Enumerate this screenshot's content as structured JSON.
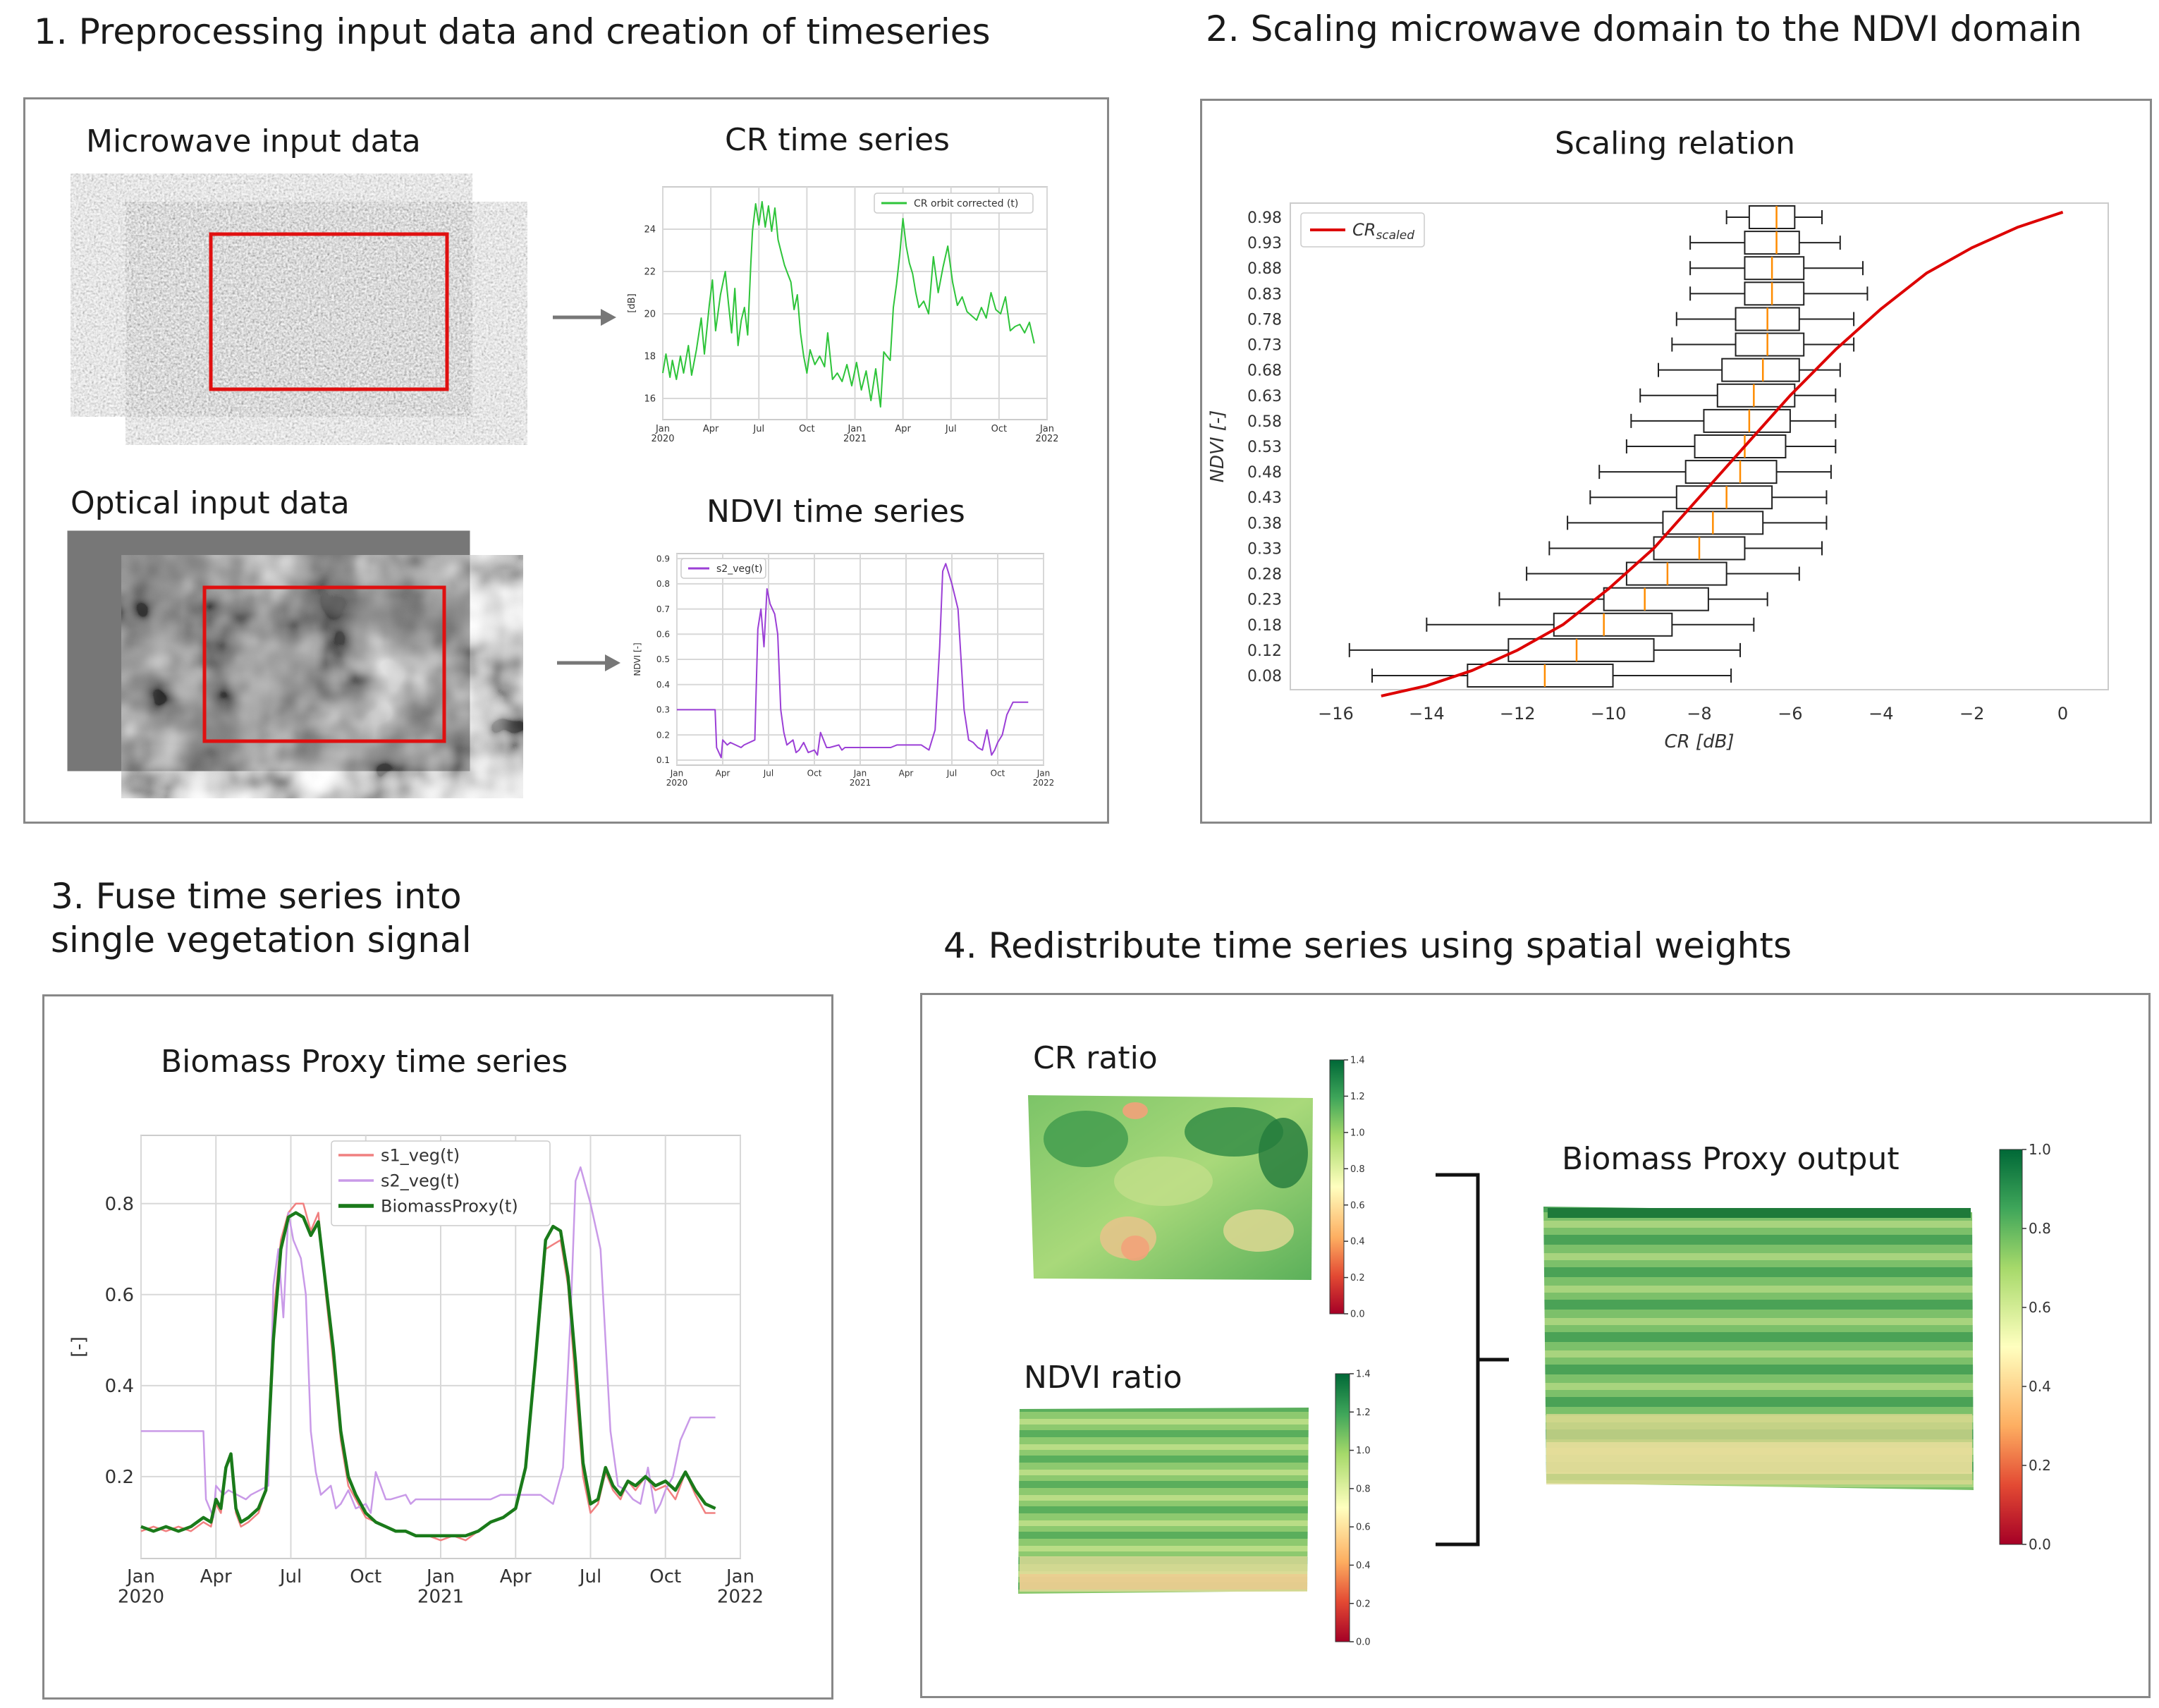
{
  "titles": {
    "s1": "1. Preprocessing input data and creation of timeseries",
    "s2": "2. Scaling microwave domain to the NDVI domain",
    "s3": "3. Fuse time series into\nsingle vegetation signal",
    "s4": "4. Redistribute time series using spatial weights"
  },
  "panel1": {
    "microwave_label": "Microwave input data",
    "optical_label": "Optical input data",
    "cr_title": "CR time series",
    "ndvi_title": "NDVI time series"
  },
  "panel2": {
    "title": "Scaling relation"
  },
  "panel3": {
    "title": "Biomass Proxy time series"
  },
  "panel4": {
    "cr_ratio": "CR ratio",
    "ndvi_ratio": "NDVI ratio",
    "output": "Biomass Proxy output"
  },
  "colors": {
    "cr_line": "#2ec43a",
    "ndvi_line": "#9b3fd6",
    "scaled": "#dd0000",
    "median": "#ff8c00",
    "s1": "#f08080",
    "s2": "#c99ae8",
    "proxy": "#1a7a1a"
  },
  "chart_data": [
    {
      "type": "line",
      "title": "CR time series",
      "ylabel": "[dB]",
      "ylim": [
        15,
        26
      ],
      "yticks": [
        "16",
        "18",
        "20",
        "22",
        "24"
      ],
      "xticks": [
        "Jan\n2020",
        "Apr",
        "Jul",
        "Oct",
        "Jan\n2021",
        "Apr",
        "Jul",
        "Oct",
        "Jan\n2022"
      ],
      "series": [
        {
          "name": "CR orbit corrected (t)",
          "t": [
            0,
            0.2,
            0.45,
            0.6,
            0.85,
            1.1,
            1.3,
            1.6,
            1.8,
            2.1,
            2.4,
            2.6,
            2.9,
            3.1,
            3.3,
            3.6,
            3.9,
            4.1,
            4.3,
            4.5,
            4.7,
            4.9,
            5.1,
            5.3,
            5.5,
            5.6,
            5.8,
            6.0,
            6.2,
            6.4,
            6.6,
            6.8,
            7.0,
            7.2,
            7.4,
            7.6,
            7.8,
            8.0,
            8.2,
            8.4,
            8.6,
            8.8,
            9.0,
            9.2,
            9.5,
            9.8,
            10.1,
            10.3,
            10.6,
            10.9,
            11.2,
            11.5,
            11.8,
            12.1,
            12.4,
            12.7,
            13.0,
            13.3,
            13.6,
            13.8,
            14.0,
            14.2,
            14.4,
            14.6,
            14.8,
            15.0,
            15.2,
            15.4,
            15.6,
            15.8,
            16.0,
            16.3,
            16.6,
            16.9,
            17.2,
            17.5,
            17.8,
            18.1,
            18.4,
            18.7,
            19.0,
            19.3,
            19.6,
            19.9,
            20.2,
            20.5,
            20.8,
            21.1,
            21.4,
            21.7,
            22.0,
            22.3,
            22.6,
            22.9,
            23.2
          ],
          "values": [
            17.2,
            18.1,
            17.0,
            17.8,
            16.9,
            18.0,
            17.2,
            18.5,
            17.1,
            18.3,
            19.8,
            18.1,
            20.4,
            21.6,
            19.2,
            20.9,
            22.0,
            20.5,
            19.1,
            21.2,
            18.5,
            19.7,
            20.3,
            19.0,
            22.4,
            23.9,
            25.2,
            24.2,
            25.3,
            24.1,
            25.1,
            23.9,
            25.0,
            23.5,
            22.9,
            22.3,
            21.9,
            21.5,
            20.2,
            20.9,
            19.1,
            18.0,
            17.2,
            18.3,
            17.6,
            18.0,
            17.5,
            19.1,
            16.9,
            17.2,
            16.8,
            17.6,
            16.6,
            17.7,
            16.4,
            17.3,
            15.9,
            17.4,
            15.6,
            18.2,
            18.0,
            17.8,
            20.3,
            21.4,
            22.8,
            24.5,
            23.2,
            22.4,
            21.9,
            21.0,
            20.3,
            20.6,
            20.0,
            22.7,
            21.0,
            22.2,
            23.2,
            21.5,
            20.4,
            20.8,
            20.1,
            19.9,
            19.7,
            20.3,
            19.8,
            21.0,
            20.2,
            20.0,
            20.8,
            19.2,
            19.4,
            19.5,
            19.1,
            19.6,
            18.6
          ]
        }
      ]
    },
    {
      "type": "line",
      "title": "NDVI time series",
      "ylabel": "NDVI [-]",
      "ylim": [
        0.08,
        0.92
      ],
      "yticks": [
        "0.1",
        "0.2",
        "0.3",
        "0.4",
        "0.5",
        "0.6",
        "0.7",
        "0.8",
        "0.9"
      ],
      "xticks": [
        "Jan\n2020",
        "Apr",
        "Jul",
        "Oct",
        "Jan\n2021",
        "Apr",
        "Jul",
        "Oct",
        "Jan\n2022"
      ],
      "series": [
        {
          "name": "s2_veg(t)",
          "t": [
            0,
            2.5,
            2.6,
            2.9,
            3.0,
            3.3,
            3.5,
            4.2,
            4.4,
            5.1,
            5.3,
            5.5,
            5.7,
            5.9,
            6.1,
            6.4,
            6.6,
            6.8,
            7.0,
            7.2,
            7.6,
            7.8,
            8.0,
            8.3,
            8.6,
            9.0,
            9.2,
            9.4,
            9.8,
            10.0,
            10.6,
            10.8,
            11.0,
            11.2,
            11.6,
            12.0,
            13.0,
            14.0,
            14.4,
            15.0,
            15.3,
            15.6,
            16.0,
            16.5,
            16.7,
            16.9,
            17.2,
            17.4,
            17.6,
            18.0,
            18.4,
            18.8,
            19.1,
            19.4,
            19.7,
            20.0,
            20.3,
            20.6,
            20.8,
            21.0,
            21.3,
            21.6,
            22.0,
            23.0
          ],
          "values": [
            0.3,
            0.3,
            0.15,
            0.11,
            0.18,
            0.16,
            0.17,
            0.15,
            0.16,
            0.18,
            0.62,
            0.7,
            0.55,
            0.78,
            0.72,
            0.68,
            0.6,
            0.3,
            0.21,
            0.16,
            0.18,
            0.13,
            0.14,
            0.17,
            0.13,
            0.14,
            0.12,
            0.21,
            0.15,
            0.15,
            0.16,
            0.14,
            0.15,
            0.15,
            0.15,
            0.15,
            0.15,
            0.15,
            0.16,
            0.16,
            0.16,
            0.16,
            0.16,
            0.14,
            0.18,
            0.22,
            0.55,
            0.85,
            0.88,
            0.8,
            0.7,
            0.3,
            0.18,
            0.17,
            0.15,
            0.14,
            0.22,
            0.12,
            0.14,
            0.17,
            0.2,
            0.28,
            0.33,
            0.33
          ]
        }
      ]
    },
    {
      "type": "line",
      "title": "Scaling relation",
      "xlabel": "CR [dB]",
      "ylabel": "NDVI [-]",
      "xlim": [
        -17,
        1
      ],
      "xticks": [
        -16,
        -14,
        -12,
        -10,
        -8,
        -6,
        -4,
        -2,
        0
      ],
      "ytick_labels": [
        "0.98",
        "0.93",
        "0.88",
        "0.83",
        "0.78",
        "0.73",
        "0.68",
        "0.63",
        "0.58",
        "0.53",
        "0.48",
        "0.43",
        "0.38",
        "0.33",
        "0.28",
        "0.23",
        "0.18",
        "0.12",
        "0.08"
      ],
      "series": [
        {
          "name": "CRscaled",
          "x": [
            -15,
            -14,
            -13,
            -12,
            -11,
            -10,
            -9,
            -8,
            -7,
            -6,
            -5,
            -4,
            -3,
            -2,
            -1,
            0
          ],
          "y": [
            0.04,
            0.06,
            0.09,
            0.13,
            0.18,
            0.25,
            0.33,
            0.43,
            0.53,
            0.63,
            0.72,
            0.8,
            0.87,
            0.92,
            0.96,
            0.99
          ]
        }
      ],
      "boxplots": {
        "ndvi": [
          0.98,
          0.93,
          0.88,
          0.83,
          0.78,
          0.73,
          0.68,
          0.63,
          0.58,
          0.53,
          0.48,
          0.43,
          0.38,
          0.33,
          0.28,
          0.23,
          0.18,
          0.12,
          0.08
        ],
        "whisker_low": [
          -7.4,
          -8.2,
          -8.2,
          -8.2,
          -8.5,
          -8.6,
          -8.9,
          -9.3,
          -9.5,
          -9.6,
          -10.2,
          -10.4,
          -10.9,
          -11.3,
          -11.8,
          -12.4,
          -14.0,
          -15.7,
          -15.2
        ],
        "q1": [
          -6.9,
          -7.0,
          -7.0,
          -7.0,
          -7.2,
          -7.2,
          -7.5,
          -7.6,
          -7.9,
          -8.1,
          -8.3,
          -8.5,
          -8.8,
          -9.0,
          -9.6,
          -10.1,
          -11.2,
          -12.2,
          -13.1
        ],
        "median": [
          -6.3,
          -6.3,
          -6.4,
          -6.4,
          -6.5,
          -6.5,
          -6.6,
          -6.8,
          -6.9,
          -7.0,
          -7.1,
          -7.4,
          -7.7,
          -8.0,
          -8.7,
          -9.2,
          -10.1,
          -10.7,
          -11.4
        ],
        "q3": [
          -5.9,
          -5.8,
          -5.7,
          -5.7,
          -5.8,
          -5.7,
          -5.8,
          -5.9,
          -6.0,
          -6.1,
          -6.3,
          -6.4,
          -6.6,
          -7.0,
          -7.4,
          -7.8,
          -8.6,
          -9.0,
          -9.9
        ],
        "whisker_high": [
          -5.3,
          -4.9,
          -4.4,
          -4.3,
          -4.6,
          -4.6,
          -4.9,
          -5.0,
          -5.0,
          -5.0,
          -5.1,
          -5.2,
          -5.2,
          -5.3,
          -5.8,
          -6.5,
          -6.8,
          -7.1,
          -7.3
        ]
      }
    },
    {
      "type": "line",
      "title": "Biomass Proxy time series",
      "ylabel": "[-]",
      "ylim": [
        0.02,
        0.95
      ],
      "yticks": [
        0.2,
        0.4,
        0.6,
        0.8
      ],
      "xticks": [
        "Jan\n2020",
        "Apr",
        "Jul",
        "Oct",
        "Jan\n2021",
        "Apr",
        "Jul",
        "Oct",
        "Jan\n2022"
      ],
      "series": [
        {
          "name": "s1_veg(t)",
          "t": [
            0,
            0.5,
            1,
            1.5,
            2,
            2.5,
            2.8,
            3.0,
            3.2,
            3.4,
            3.6,
            3.8,
            4.0,
            4.3,
            4.7,
            5.0,
            5.3,
            5.6,
            5.9,
            6.2,
            6.5,
            6.8,
            7.1,
            7.4,
            7.7,
            8.0,
            8.3,
            8.6,
            9.0,
            9.4,
            9.8,
            10.2,
            10.6,
            11.0,
            11.5,
            12.0,
            12.5,
            13.0,
            13.5,
            14.0,
            14.5,
            15.0,
            15.4,
            15.8,
            16.2,
            16.5,
            16.8,
            17.1,
            17.4,
            17.7,
            18.0,
            18.3,
            18.6,
            18.9,
            19.2,
            19.5,
            19.8,
            20.2,
            20.6,
            21.0,
            21.4,
            21.8,
            22.2,
            22.6,
            23.0
          ],
          "values": [
            0.08,
            0.09,
            0.08,
            0.09,
            0.08,
            0.1,
            0.09,
            0.14,
            0.12,
            0.22,
            0.24,
            0.12,
            0.09,
            0.1,
            0.12,
            0.17,
            0.55,
            0.72,
            0.78,
            0.8,
            0.8,
            0.74,
            0.78,
            0.6,
            0.45,
            0.28,
            0.18,
            0.15,
            0.11,
            0.1,
            0.09,
            0.08,
            0.08,
            0.07,
            0.07,
            0.06,
            0.07,
            0.06,
            0.08,
            0.1,
            0.11,
            0.13,
            0.22,
            0.45,
            0.7,
            0.71,
            0.72,
            0.62,
            0.4,
            0.2,
            0.12,
            0.14,
            0.21,
            0.17,
            0.15,
            0.19,
            0.17,
            0.2,
            0.17,
            0.18,
            0.15,
            0.21,
            0.16,
            0.12,
            0.12
          ]
        },
        {
          "name": "s2_veg(t)",
          "t": [
            0,
            2.5,
            2.6,
            2.9,
            3.0,
            3.3,
            3.5,
            4.2,
            4.4,
            5.1,
            5.3,
            5.5,
            5.7,
            5.9,
            6.1,
            6.4,
            6.6,
            6.8,
            7.0,
            7.2,
            7.6,
            7.8,
            8.0,
            8.3,
            8.6,
            9.0,
            9.2,
            9.4,
            9.8,
            10.0,
            10.6,
            10.8,
            11.0,
            11.2,
            11.6,
            12.0,
            13.0,
            14.0,
            14.4,
            15.0,
            15.3,
            15.6,
            16.0,
            16.5,
            16.7,
            16.9,
            17.2,
            17.4,
            17.6,
            18.0,
            18.4,
            18.8,
            19.1,
            19.4,
            19.7,
            20.0,
            20.3,
            20.6,
            20.8,
            21.0,
            21.3,
            21.6,
            22.0,
            23.0
          ],
          "values": [
            0.3,
            0.3,
            0.15,
            0.11,
            0.18,
            0.16,
            0.17,
            0.15,
            0.16,
            0.18,
            0.62,
            0.7,
            0.55,
            0.78,
            0.72,
            0.68,
            0.6,
            0.3,
            0.21,
            0.16,
            0.18,
            0.13,
            0.14,
            0.17,
            0.13,
            0.14,
            0.12,
            0.21,
            0.15,
            0.15,
            0.16,
            0.14,
            0.15,
            0.15,
            0.15,
            0.15,
            0.15,
            0.15,
            0.16,
            0.16,
            0.16,
            0.16,
            0.16,
            0.14,
            0.18,
            0.22,
            0.55,
            0.85,
            0.88,
            0.8,
            0.7,
            0.3,
            0.18,
            0.17,
            0.15,
            0.14,
            0.22,
            0.12,
            0.14,
            0.17,
            0.2,
            0.28,
            0.33,
            0.33
          ]
        },
        {
          "name": "BiomassProxy(t)",
          "t": [
            0,
            0.5,
            1,
            1.5,
            2,
            2.5,
            2.8,
            3.0,
            3.2,
            3.4,
            3.6,
            3.8,
            4.0,
            4.3,
            4.7,
            5.0,
            5.3,
            5.6,
            5.9,
            6.2,
            6.5,
            6.8,
            7.1,
            7.4,
            7.7,
            8.0,
            8.3,
            8.6,
            9.0,
            9.4,
            9.8,
            10.2,
            10.6,
            11.0,
            11.5,
            12.0,
            12.5,
            13.0,
            13.5,
            14.0,
            14.5,
            15.0,
            15.4,
            15.8,
            16.2,
            16.5,
            16.8,
            17.1,
            17.4,
            17.7,
            18.0,
            18.3,
            18.6,
            18.9,
            19.2,
            19.5,
            19.8,
            20.2,
            20.6,
            21.0,
            21.4,
            21.8,
            22.2,
            22.6,
            23.0
          ],
          "values": [
            0.09,
            0.08,
            0.09,
            0.08,
            0.09,
            0.11,
            0.1,
            0.15,
            0.13,
            0.22,
            0.25,
            0.13,
            0.1,
            0.11,
            0.13,
            0.17,
            0.5,
            0.7,
            0.77,
            0.78,
            0.77,
            0.73,
            0.76,
            0.62,
            0.48,
            0.3,
            0.2,
            0.16,
            0.12,
            0.1,
            0.09,
            0.08,
            0.08,
            0.07,
            0.07,
            0.07,
            0.07,
            0.07,
            0.08,
            0.1,
            0.11,
            0.13,
            0.22,
            0.46,
            0.72,
            0.75,
            0.74,
            0.64,
            0.45,
            0.23,
            0.14,
            0.15,
            0.22,
            0.18,
            0.16,
            0.19,
            0.18,
            0.2,
            0.18,
            0.19,
            0.17,
            0.21,
            0.17,
            0.14,
            0.13
          ]
        }
      ]
    }
  ],
  "colorbars": {
    "cr_ticks": [
      "0.0",
      "0.2",
      "0.4",
      "0.6",
      "0.8",
      "1.0",
      "1.2",
      "1.4"
    ],
    "ndvi_ticks": [
      "0.0",
      "0.2",
      "0.4",
      "0.6",
      "0.8",
      "1.0",
      "1.2",
      "1.4"
    ],
    "out_ticks": [
      "0.0",
      "0.2",
      "0.4",
      "0.6",
      "0.8",
      "1.0"
    ]
  }
}
